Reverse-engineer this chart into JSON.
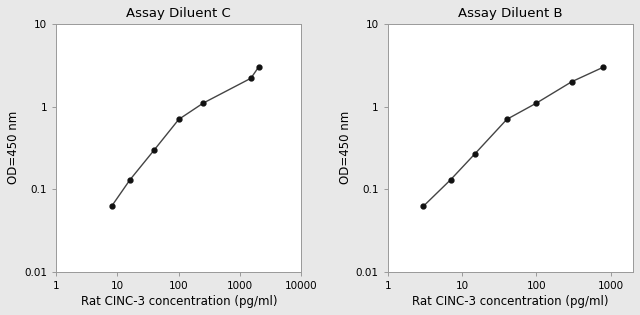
{
  "left": {
    "title": "Assay Diluent C",
    "x": [
      8,
      16,
      40,
      100,
      250,
      1500,
      2000
    ],
    "y": [
      0.062,
      0.13,
      0.3,
      0.7,
      1.1,
      2.2,
      3.0
    ],
    "xlim": [
      1,
      10000
    ],
    "ylim": [
      0.01,
      10
    ],
    "xticks": [
      1,
      10,
      100,
      1000,
      10000
    ],
    "yticks": [
      0.01,
      0.1,
      1,
      10
    ],
    "xlabel": "Rat CINC-3 concentration (pg/ml)",
    "ylabel": "OD=450 nm"
  },
  "right": {
    "title": "Assay Diluent B",
    "x": [
      3,
      7,
      15,
      40,
      100,
      300,
      800
    ],
    "y": [
      0.062,
      0.13,
      0.27,
      0.7,
      1.1,
      2.0,
      3.0
    ],
    "xlim": [
      1,
      2000
    ],
    "ylim": [
      0.01,
      10
    ],
    "xticks": [
      1,
      10,
      100,
      1000
    ],
    "yticks": [
      0.01,
      0.1,
      1,
      10
    ],
    "xlabel": "Rat CINC-3 concentration (pg/ml)",
    "ylabel": "OD=450 nm"
  },
  "bg_color": "#e8e8e8",
  "plot_bg_color": "#ffffff",
  "line_color": "#444444",
  "marker_color": "#111111",
  "marker_size": 3.5,
  "line_width": 1.0,
  "title_fontsize": 9.5,
  "label_fontsize": 8.5,
  "tick_fontsize": 7.5,
  "spine_color": "#999999"
}
